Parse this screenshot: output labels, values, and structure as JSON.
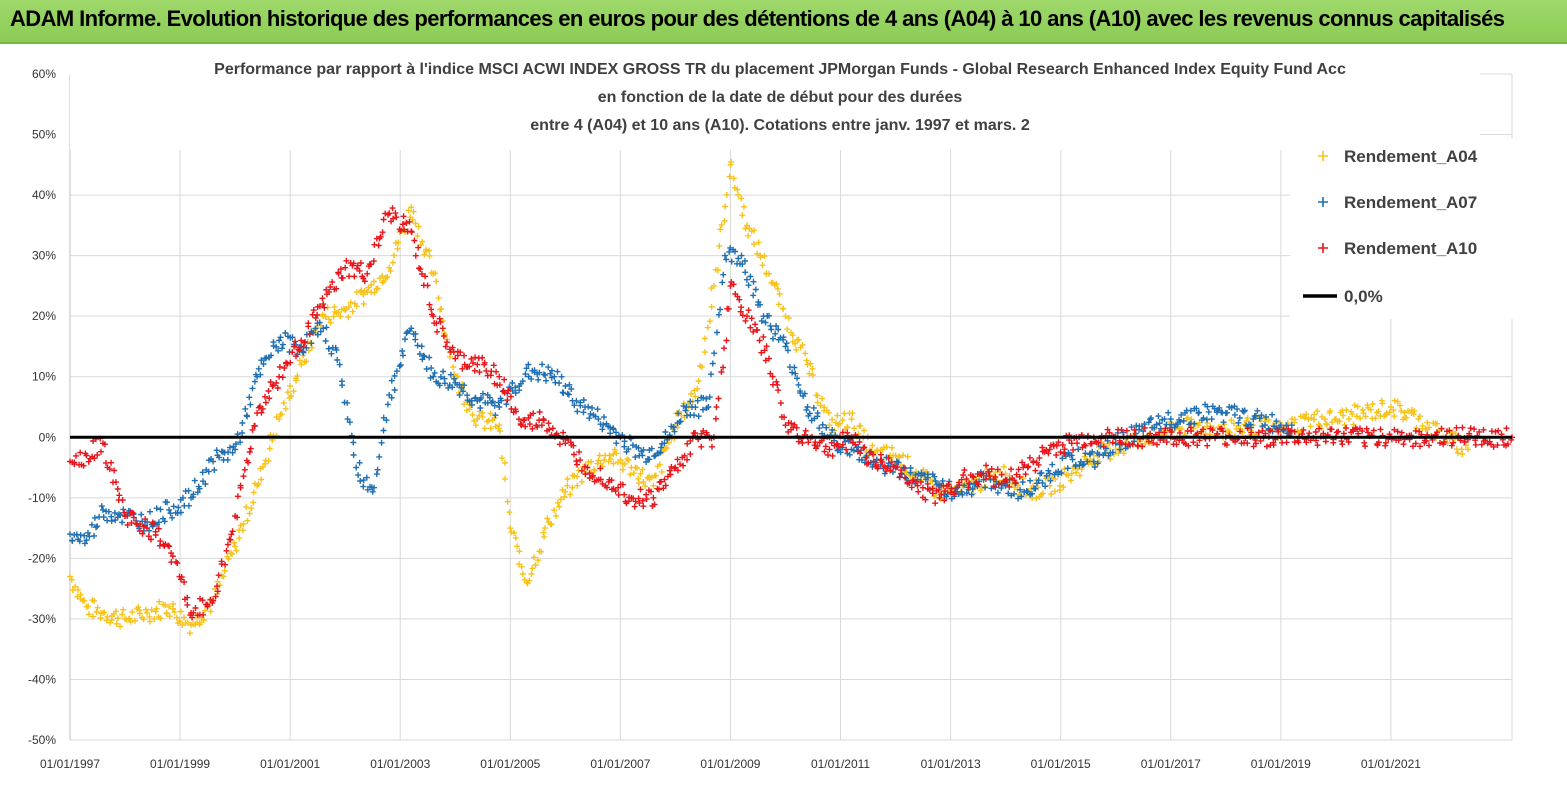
{
  "banner": {
    "title": "ADAM Informe. Evolution historique des performances en euros pour des détentions de 4 ans (A04) à 10 ans (A10) avec les revenus connus capitalisés"
  },
  "colors": {
    "A04": "#f7c31a",
    "A07": "#1f6fb2",
    "A10": "#e8151b",
    "zero": "#000000",
    "grid": "#d9d9d9",
    "banner": "#92d050"
  },
  "chart_data": {
    "type": "scatter",
    "title_lines": [
      "Performance par rapport à l'indice MSCI ACWI INDEX GROSS TR  du placement JPMorgan Funds - Global Research Enhanced Index Equity Fund Acc",
      "en fonction de la date de début pour des durées",
      "entre 4 (A04) et 10 ans (A10). Cotations entre janv. 1997 et mars. 2"
    ],
    "y_ticks": [
      "60%",
      "50%",
      "40%",
      "30%",
      "20%",
      "10%",
      "0%",
      "-10%",
      "-20%",
      "-30%",
      "-40%",
      "-50%"
    ],
    "ylim": [
      -50,
      60
    ],
    "x_ticks": [
      "01/01/1997",
      "01/01/1999",
      "01/01/2001",
      "01/01/2003",
      "01/01/2005",
      "01/01/2007",
      "01/01/2009",
      "01/01/2011",
      "01/01/2013",
      "01/01/2015",
      "01/01/2017",
      "01/01/2019",
      "01/01/2021"
    ],
    "xlim": [
      1997.0,
      2023.2
    ],
    "legend_position": "top-right",
    "series": [
      {
        "name": "Rendement_A04",
        "color_key": "A04",
        "x": [
          1997.0,
          1997.3,
          1997.6,
          1998.0,
          1998.4,
          1998.8,
          1999.2,
          1999.6,
          2000.0,
          2000.4,
          2000.8,
          2001.2,
          2001.6,
          2002.0,
          2002.4,
          2002.8,
          2003.2,
          2003.6,
          2004.0,
          2004.4,
          2004.8,
          2005.0,
          2005.3,
          2005.7,
          2006.0,
          2006.4,
          2006.8,
          2007.2,
          2007.6,
          2008.0,
          2008.4,
          2008.7,
          2009.0,
          2009.3,
          2009.7,
          2010.0,
          2010.4,
          2010.8,
          2011.2,
          2011.6,
          2012.0,
          2012.4,
          2012.8,
          2013.2,
          2013.6,
          2014.0,
          2014.4,
          2014.8,
          2015.2,
          2015.6,
          2016.0,
          2016.5,
          2017.0,
          2017.5,
          2018.0,
          2018.5,
          2019.0,
          2019.5,
          2020.0,
          2020.5,
          2021.0,
          2021.5,
          2022.0,
          2022.4
        ],
        "y": [
          -23,
          -28,
          -29,
          -30,
          -29,
          -28,
          -31,
          -27,
          -18,
          -8,
          3,
          12,
          20,
          21,
          24,
          28,
          38,
          27,
          10,
          3,
          2,
          -15,
          -24,
          -14,
          -9,
          -5,
          -3,
          -5,
          -8,
          2,
          8,
          25,
          45,
          35,
          27,
          20,
          12,
          2,
          3,
          -3,
          -3,
          -6,
          -9,
          -9,
          -7,
          -6,
          -9,
          -8,
          -6,
          -3,
          -2,
          0,
          1,
          2,
          1,
          2,
          1,
          3,
          3,
          4,
          5,
          3,
          0,
          -2
        ]
      },
      {
        "name": "Rendement_A07",
        "color_key": "A07",
        "x": [
          1997.0,
          1997.3,
          1997.6,
          1998.0,
          1998.4,
          1998.8,
          1999.2,
          1999.6,
          2000.0,
          2000.4,
          2000.8,
          2001.2,
          2001.6,
          2001.9,
          2002.2,
          2002.5,
          2002.8,
          2003.2,
          2003.6,
          2004.0,
          2004.4,
          2004.8,
          2005.0,
          2005.4,
          2005.8,
          2006.2,
          2006.6,
          2007.0,
          2007.4,
          2007.8,
          2008.2,
          2008.6,
          2008.9,
          2009.2,
          2009.6,
          2010.0,
          2010.4,
          2010.8,
          2011.2,
          2011.6,
          2012.0,
          2012.4,
          2012.8,
          2013.2,
          2013.6,
          2014.0,
          2014.4,
          2014.8,
          2015.2,
          2015.6,
          2016.0,
          2016.5,
          2017.0,
          2017.5,
          2018.0,
          2018.5,
          2019.0,
          2019.2
        ],
        "y": [
          -16,
          -17,
          -12,
          -13,
          -14,
          -12,
          -10,
          -4,
          -2,
          10,
          16,
          15,
          18,
          12,
          -5,
          -9,
          7,
          18,
          10,
          9,
          6,
          5,
          8,
          11,
          10,
          6,
          3,
          0,
          -3,
          -1,
          5,
          5,
          30,
          30,
          20,
          15,
          5,
          0,
          -2,
          -4,
          -5,
          -7,
          -8,
          -9,
          -7,
          -8,
          -9,
          -6,
          -3,
          -4,
          -1,
          1,
          3,
          4,
          4,
          3,
          2,
          2
        ]
      },
      {
        "name": "Rendement_A10",
        "color_key": "A10",
        "x": [
          1997.0,
          1997.3,
          1997.6,
          1998.0,
          1998.4,
          1998.8,
          1999.2,
          1999.6,
          2000.0,
          2000.4,
          2000.8,
          2001.2,
          2001.6,
          2002.0,
          2002.4,
          2002.8,
          2003.2,
          2003.6,
          2004.0,
          2004.4,
          2004.8,
          2005.2,
          2005.6,
          2006.0,
          2006.4,
          2006.8,
          2007.2,
          2007.6,
          2008.0,
          2008.4,
          2008.7,
          2009.0,
          2009.3,
          2009.7,
          2010.0,
          2010.4,
          2010.8,
          2011.2,
          2011.6,
          2012.0,
          2012.4,
          2012.8,
          2013.2,
          2013.6,
          2014.0,
          2014.4,
          2014.8,
          2015.2,
          2015.6,
          2016.0,
          2016.5,
          2017.0,
          2018.0,
          2019.0,
          2020.0,
          2021.0,
          2022.0,
          2023.2
        ],
        "y": [
          -4,
          -3,
          -1,
          -13,
          -15,
          -18,
          -29,
          -27,
          -13,
          4,
          10,
          16,
          22,
          28,
          27,
          37,
          34,
          20,
          13,
          12,
          10,
          2,
          3,
          -1,
          -5,
          -7,
          -10,
          -10,
          -5,
          0,
          0,
          25,
          20,
          13,
          2,
          0,
          -2,
          0,
          -4,
          -5,
          -8,
          -10,
          -7,
          -6,
          -7,
          -5,
          -2,
          -1,
          0,
          0,
          0,
          0,
          0,
          0,
          0,
          0,
          0,
          0
        ]
      }
    ],
    "reference_line": {
      "name": "0,0%",
      "y": 0
    }
  }
}
